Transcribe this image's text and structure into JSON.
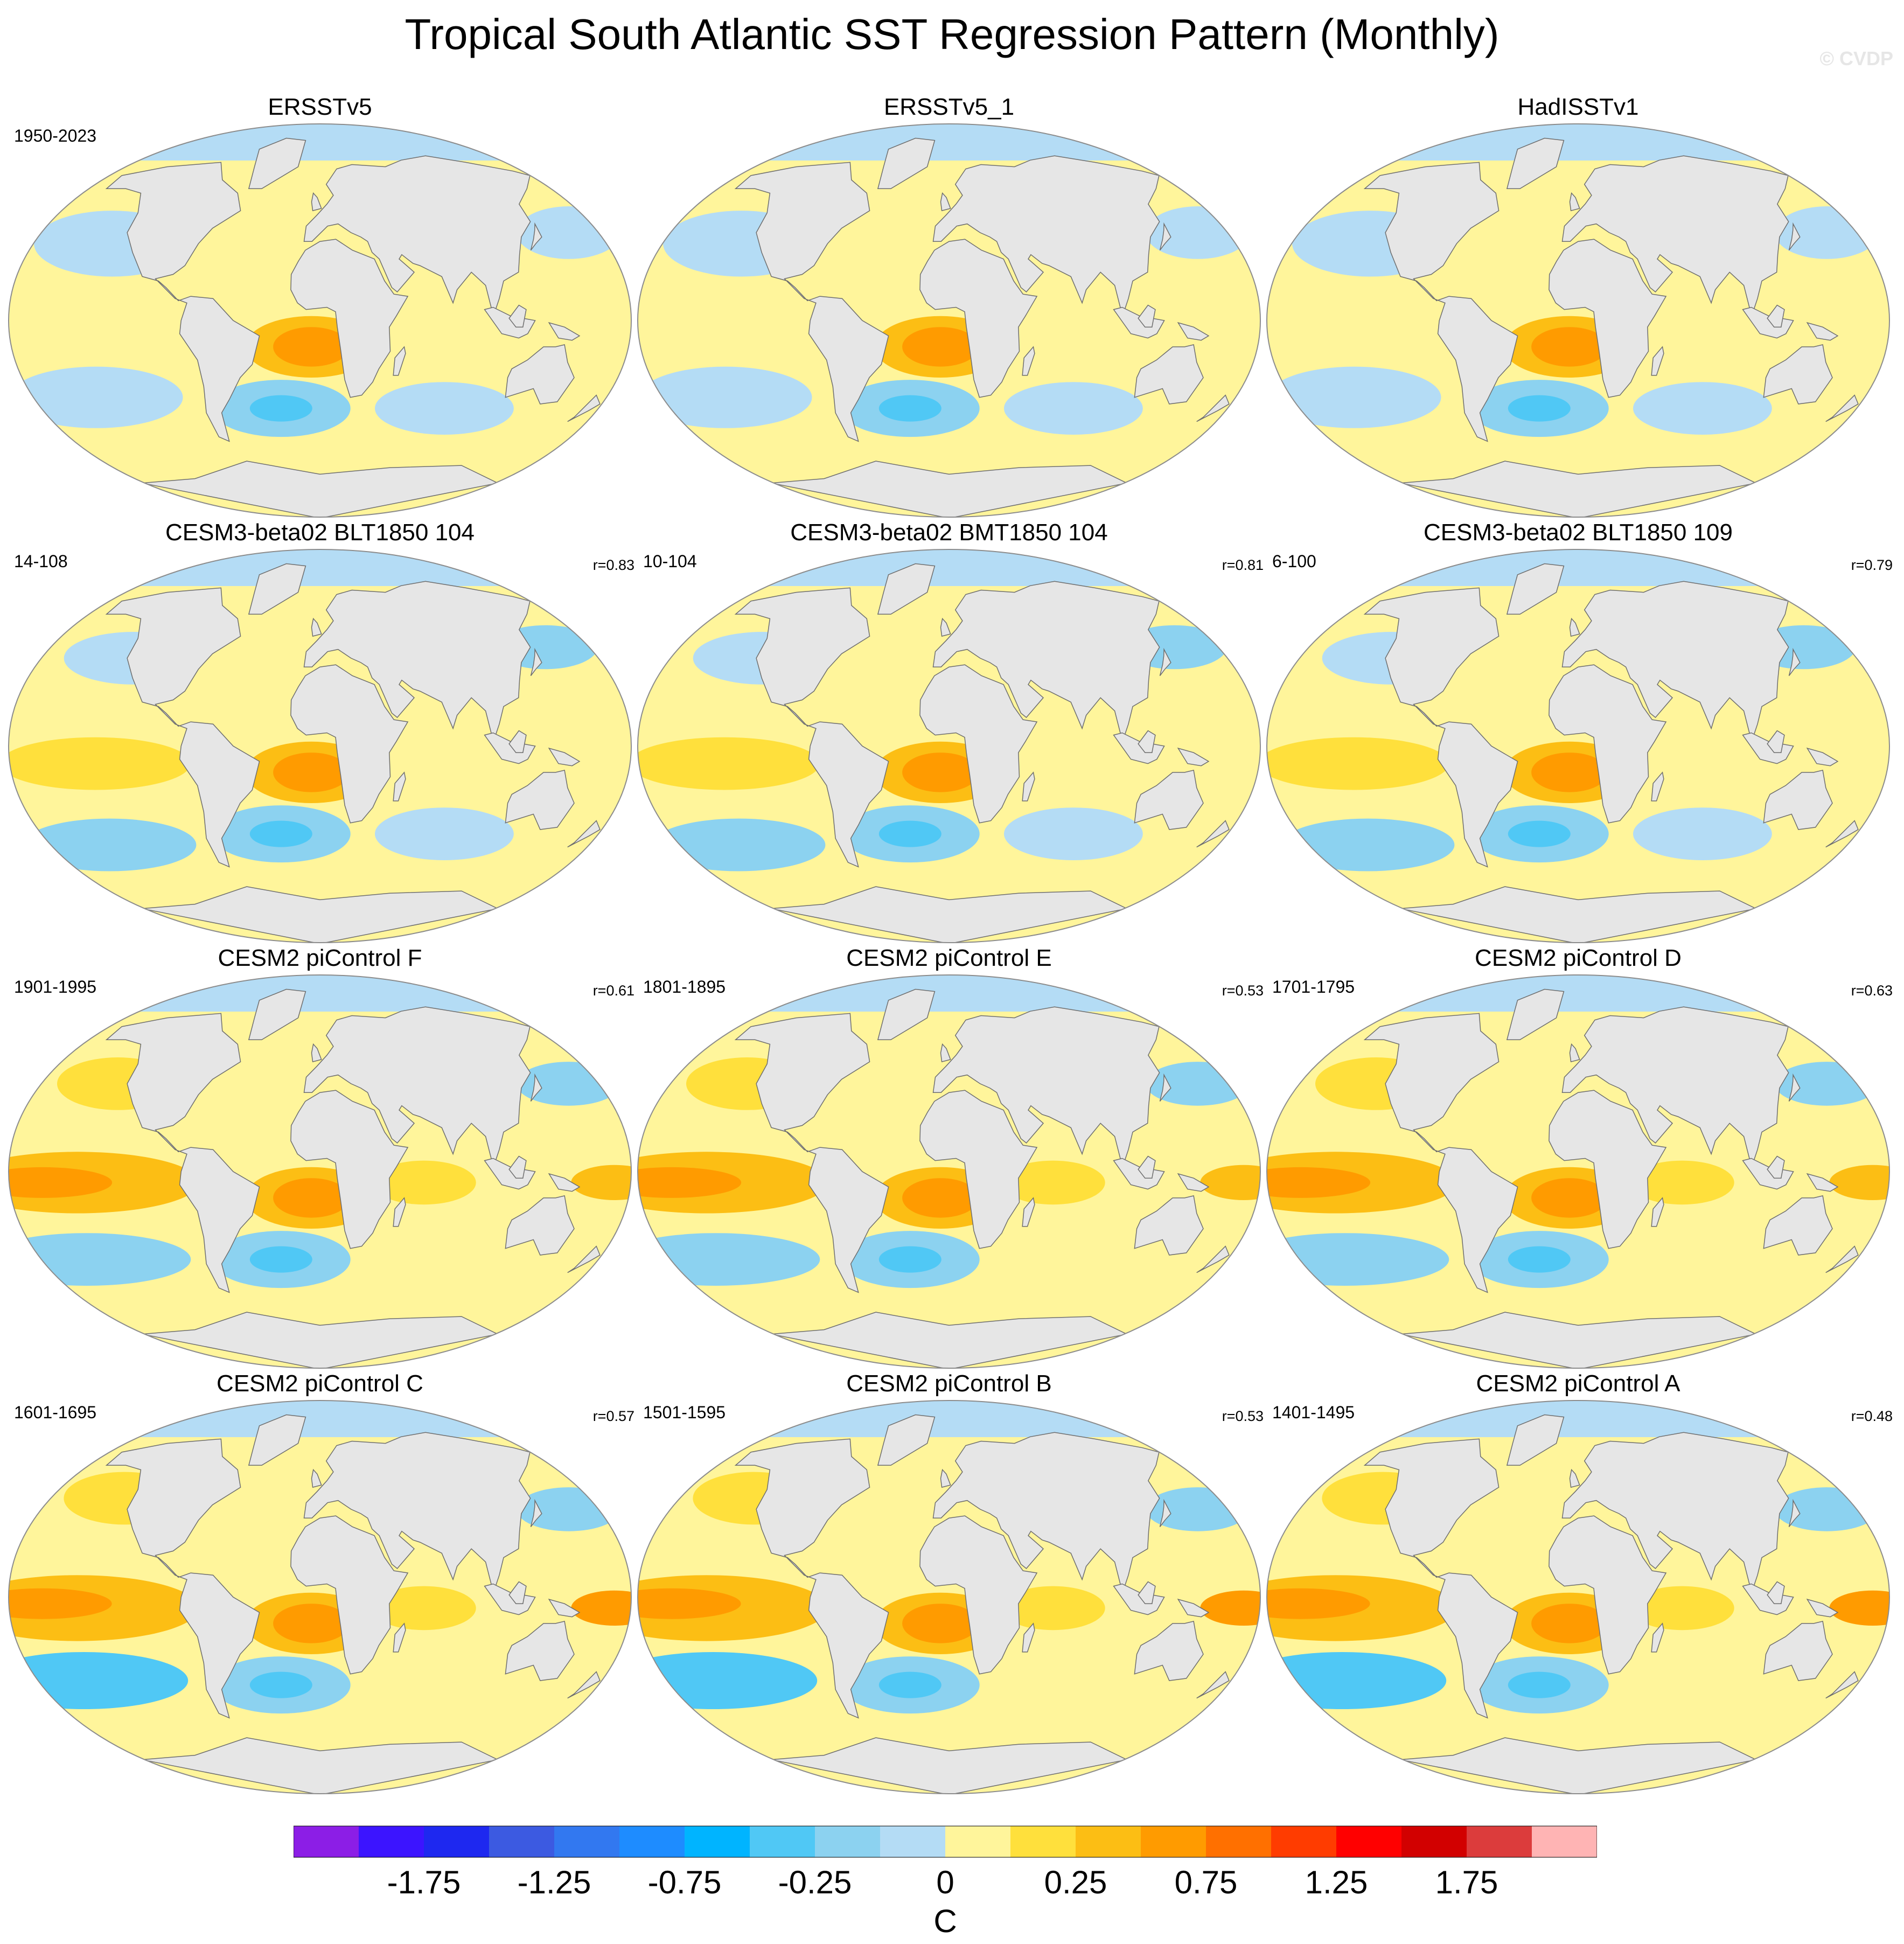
{
  "title": "Tropical South Atlantic SST Regression Pattern (Monthly)",
  "watermark": "© CVDP",
  "colorbar": {
    "colors": [
      "#8c1ee6",
      "#3c14ff",
      "#1e28f0",
      "#3c5ae1",
      "#3278f0",
      "#1e8cff",
      "#00b4ff",
      "#50c8f5",
      "#8cd2f0",
      "#b4dcf5",
      "#fff59b",
      "#ffe03c",
      "#fcbe14",
      "#ff9b00",
      "#ff7000",
      "#ff3c00",
      "#ff0000",
      "#d20000",
      "#dc3c3c",
      "#ffb4b4"
    ],
    "tick_labels": [
      "-1.75",
      "-1.25",
      "-0.75",
      "-0.25",
      "0",
      "0.25",
      "0.75",
      "1.25",
      "1.75"
    ],
    "units": "C"
  },
  "panels": [
    {
      "title": "ERSSTv5",
      "period": "1950-2023",
      "corr": ""
    },
    {
      "title": "ERSSTv5_1",
      "period": "",
      "corr": ""
    },
    {
      "title": "HadISSTv1",
      "period": "",
      "corr": ""
    },
    {
      "title": "CESM3-beta02 BLT1850 104",
      "period": "14-108",
      "corr": "r=0.83"
    },
    {
      "title": "CESM3-beta02 BMT1850 104",
      "period": "10-104",
      "corr": "r=0.81"
    },
    {
      "title": "CESM3-beta02 BLT1850 109",
      "period": "6-100",
      "corr": "r=0.79"
    },
    {
      "title": "CESM2 piControl F",
      "period": "1901-1995",
      "corr": "r=0.61"
    },
    {
      "title": "CESM2 piControl E",
      "period": "1801-1895",
      "corr": "r=0.53"
    },
    {
      "title": "CESM2 piControl D",
      "period": "1701-1795",
      "corr": "r=0.63"
    },
    {
      "title": "CESM2 piControl C",
      "period": "1601-1695",
      "corr": "r=0.57"
    },
    {
      "title": "CESM2 piControl B",
      "period": "1501-1595",
      "corr": "r=0.53"
    },
    {
      "title": "CESM2 piControl A",
      "period": "1401-1495",
      "corr": "r=0.48"
    }
  ]
}
